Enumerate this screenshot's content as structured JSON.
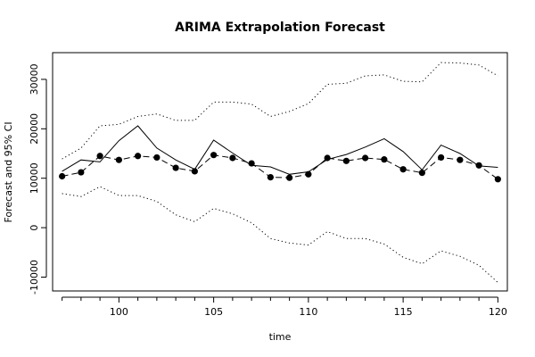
{
  "chart_data": {
    "type": "line",
    "title": "ARIMA Extrapolation Forecast",
    "xlabel": "time",
    "ylabel": "Forecast and 95% CI",
    "xlim": [
      96.5,
      120.5
    ],
    "ylim": [
      -12800,
      35400
    ],
    "x_ticks": [
      100,
      105,
      110,
      115,
      120
    ],
    "y_ticks": [
      -10000,
      0,
      10000,
      20000,
      30000
    ],
    "x": [
      97,
      98,
      99,
      100,
      101,
      102,
      103,
      104,
      105,
      106,
      107,
      108,
      109,
      110,
      111,
      112,
      113,
      114,
      115,
      116,
      117,
      118,
      119,
      120
    ],
    "series": [
      {
        "role": "actual",
        "style": "solid",
        "values": [
          11400,
          13700,
          13300,
          17600,
          20600,
          16100,
          13700,
          11800,
          17700,
          15100,
          12600,
          12300,
          10800,
          11300,
          13800,
          14800,
          16300,
          18000,
          15400,
          11700,
          16700,
          15000,
          12500,
          12200
        ]
      },
      {
        "role": "forecast",
        "style": "dashed-with-points",
        "values": [
          10400,
          11200,
          14500,
          13700,
          14500,
          14200,
          12100,
          11400,
          14700,
          14100,
          13000,
          10200,
          10100,
          10800,
          14100,
          13500,
          14100,
          13800,
          11800,
          11100,
          14200,
          13700,
          12600,
          9800
        ]
      },
      {
        "role": "upper-95",
        "style": "dotted",
        "values": [
          13900,
          16100,
          20600,
          20900,
          22500,
          23000,
          21700,
          21700,
          25400,
          25400,
          25000,
          22500,
          23500,
          25100,
          29000,
          29200,
          30700,
          30900,
          29600,
          29500,
          33400,
          33300,
          32900,
          30700
        ]
      },
      {
        "role": "lower-95",
        "style": "dotted",
        "values": [
          6900,
          6300,
          8300,
          6500,
          6500,
          5300,
          2600,
          1200,
          3900,
          2800,
          1000,
          -2200,
          -3100,
          -3500,
          -800,
          -2200,
          -2200,
          -3300,
          -6000,
          -7300,
          -4700,
          -5800,
          -7600,
          -11100
        ]
      }
    ],
    "grid": false,
    "legend": "none"
  }
}
